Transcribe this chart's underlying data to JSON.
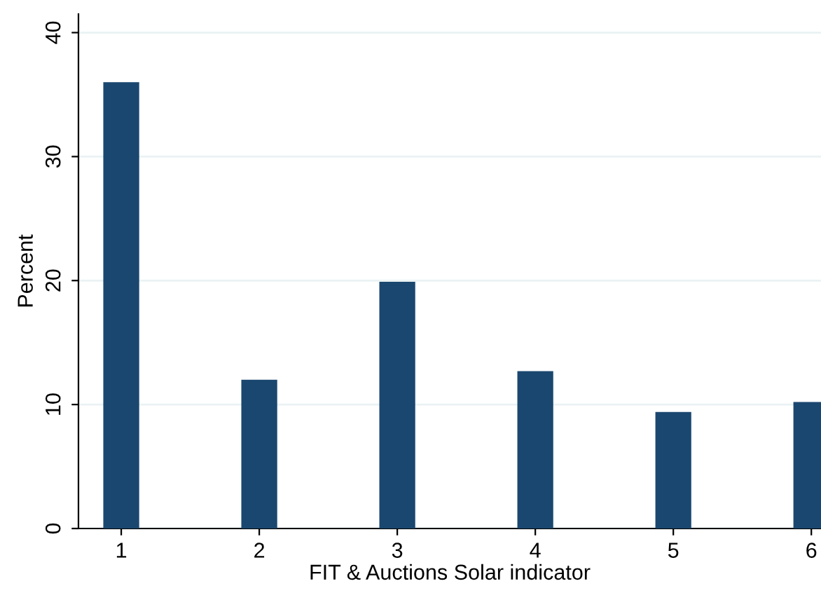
{
  "chart_data": {
    "type": "bar",
    "xlabel": "FIT & Auctions Solar indicator",
    "ylabel": "Percent",
    "x": [
      1,
      2,
      3,
      4,
      5,
      6
    ],
    "values": [
      36,
      12,
      19.9,
      12.7,
      9.4,
      10.2
    ],
    "color": "#1a476f",
    "xlim": [
      0.69,
      6.07
    ],
    "xticks": [
      1,
      2,
      3,
      4,
      5,
      6
    ],
    "ylim": [
      0,
      41.5
    ],
    "yticks": [
      0,
      10,
      20,
      30,
      40
    ],
    "grid": "y",
    "legend": false
  }
}
